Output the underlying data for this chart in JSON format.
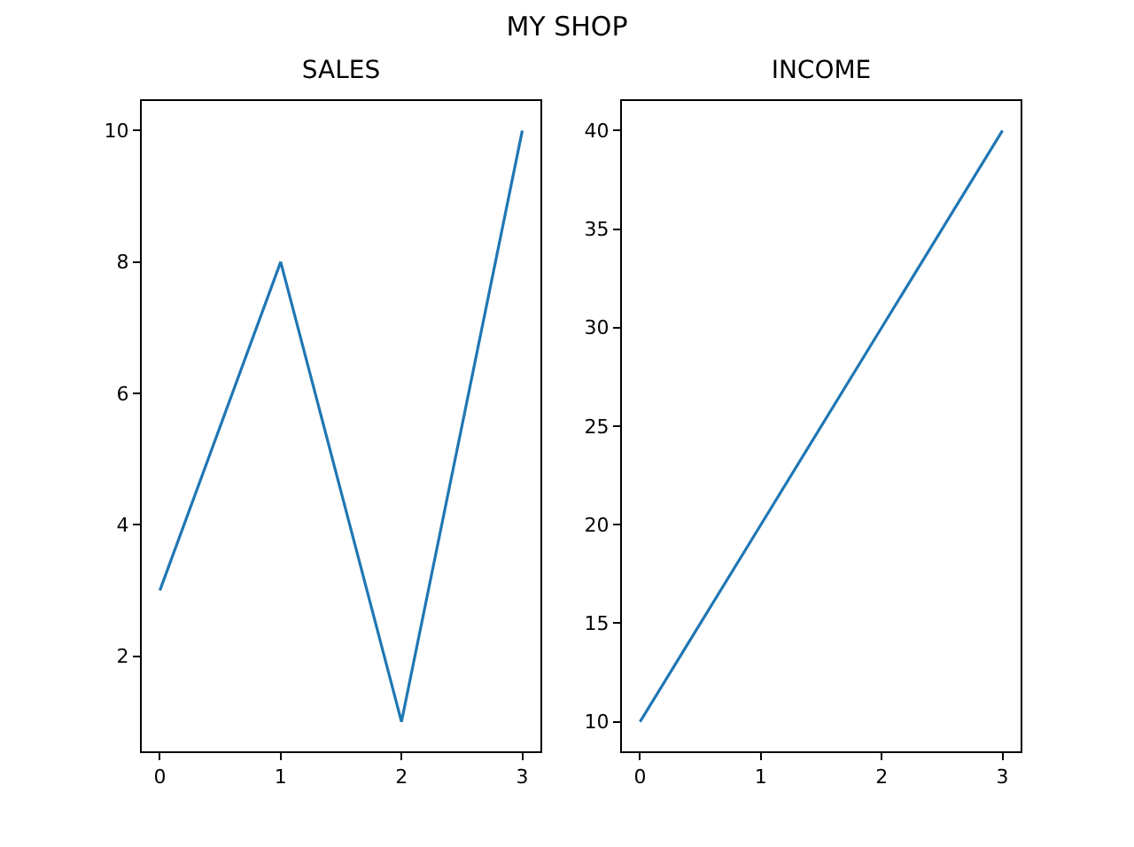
{
  "chart_data": [
    {
      "type": "line",
      "title": "SALES",
      "annotations": [
        "MY SHOP"
      ],
      "x": [
        0,
        1,
        2,
        3
      ],
      "values": [
        3,
        8,
        1,
        10
      ],
      "color": "#1f77b4",
      "xlim": [
        -0.15,
        3.15
      ],
      "xticks": [
        0,
        1,
        2,
        3
      ],
      "ylim": [
        0.55,
        10.45
      ],
      "yticks": [
        2,
        4,
        6,
        8,
        10
      ]
    },
    {
      "type": "line",
      "title": "INCOME",
      "x": [
        0,
        1,
        2,
        3
      ],
      "values": [
        10,
        20,
        30,
        40
      ],
      "color": "#1f77b4",
      "xlim": [
        -0.15,
        3.15
      ],
      "xticks": [
        0,
        1,
        2,
        3
      ],
      "ylim": [
        8.5,
        41.5
      ],
      "yticks": [
        10,
        15,
        20,
        25,
        30,
        35,
        40
      ]
    }
  ]
}
